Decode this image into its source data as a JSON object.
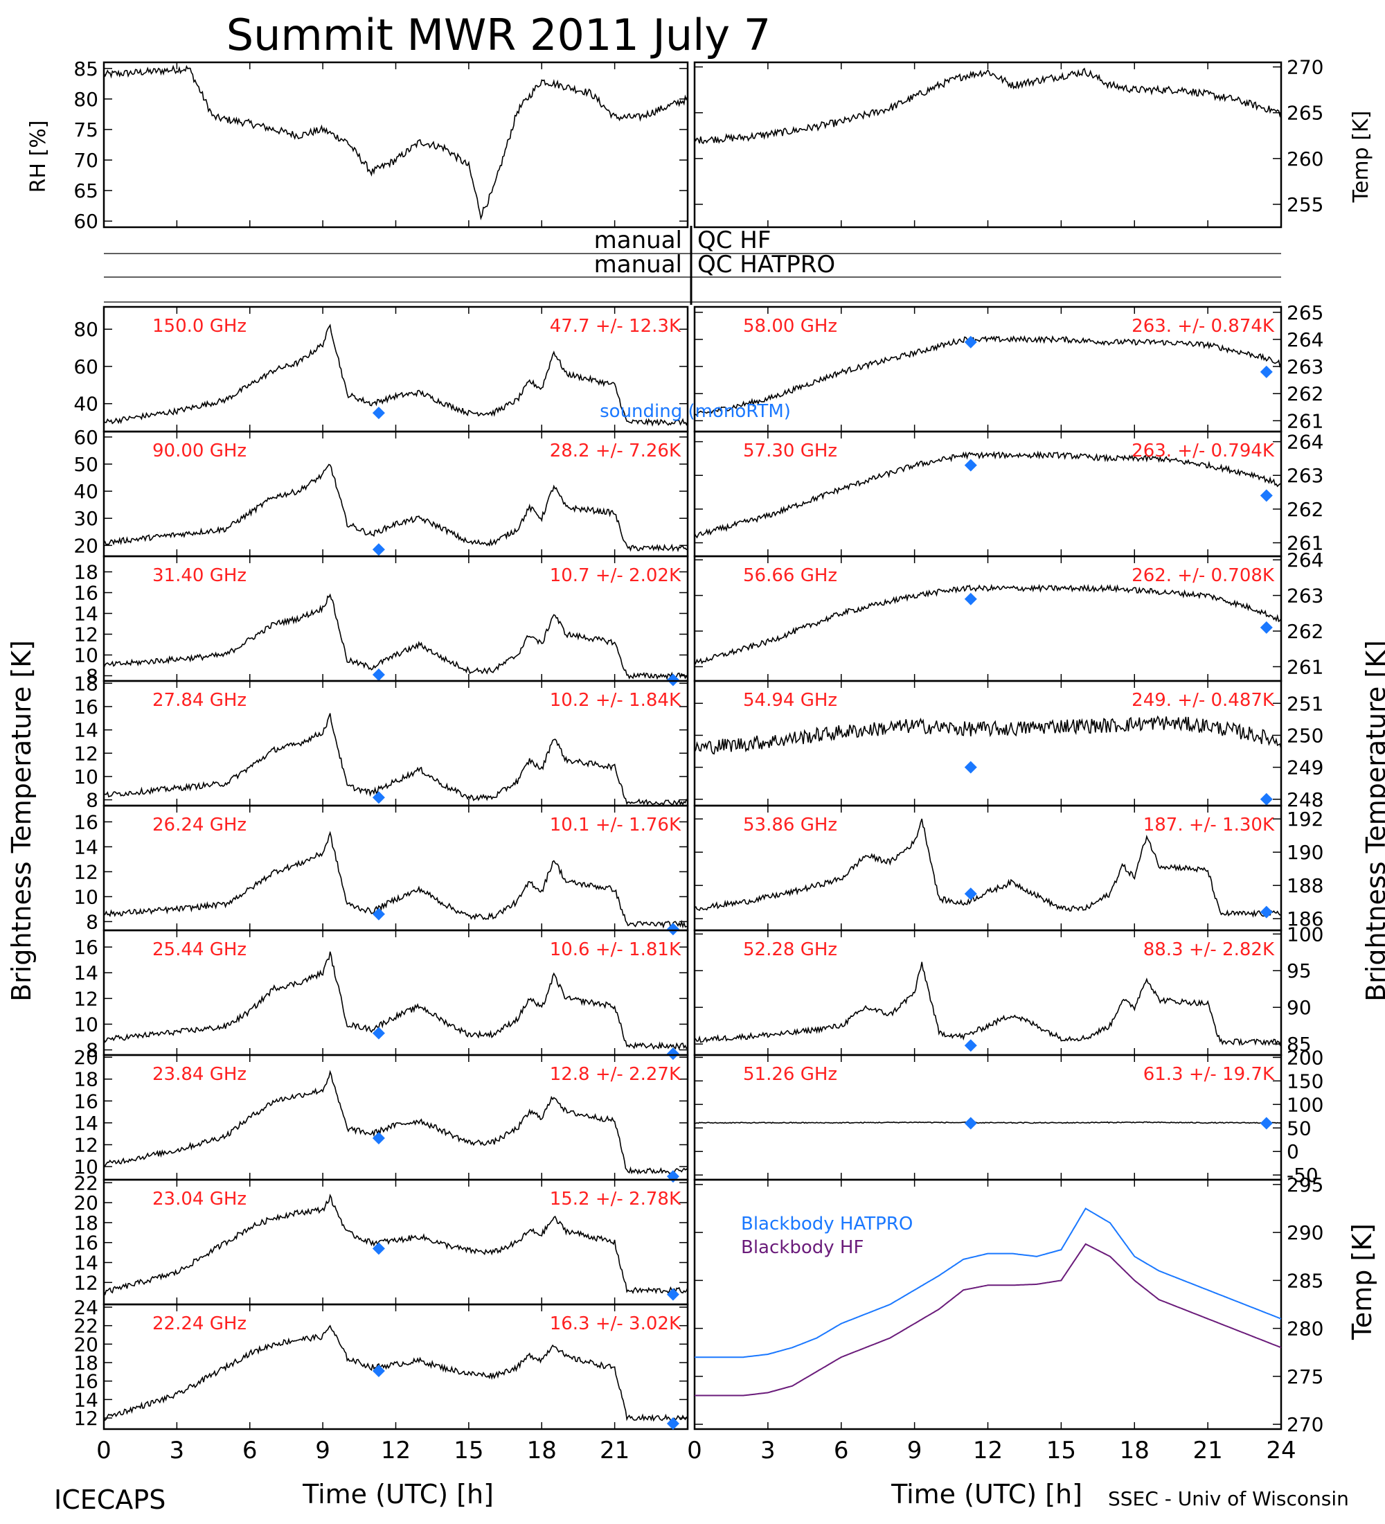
{
  "figure": {
    "title": "Summit MWR 2011 July 7",
    "left_ylabel": "Brightness Temperature [K]",
    "right_ylabel": "Brightness Temperature [K]",
    "xlabel": "Time (UTC) [h]",
    "footer_left": "ICECAPS",
    "footer_right": "SSEC - Univ of Wisconsin",
    "qc_hf_left": "manual",
    "qc_hf_right": "QC HF",
    "qc_hatpro_left": "manual",
    "qc_hatpro_right": "QC HATPRO",
    "sounding_note": "sounding (monoRTM)",
    "blackbody_hatpro": "Blackbody HATPRO",
    "blackbody_hf": "Blackbody HF",
    "colors": {
      "trace": "#000000",
      "label": "#ff2020",
      "marker": "#1a78ff",
      "bb_hatpro": "#1a78ff",
      "bb_hf": "#6a1b7a"
    }
  },
  "chart_data": [
    {
      "id": "rh",
      "type": "line",
      "side": "left",
      "ylabel": "RH [%]",
      "ylim": [
        59,
        86
      ],
      "yticks": [
        60,
        65,
        70,
        75,
        80,
        85
      ],
      "xlim": [
        0,
        24
      ],
      "x": [
        0,
        2,
        3.5,
        4.5,
        6,
        8,
        9,
        10,
        11,
        12,
        13,
        14,
        15,
        15.5,
        16,
        17,
        18,
        20,
        21,
        22,
        24
      ],
      "values": [
        84,
        84.5,
        85,
        77,
        76,
        74,
        75,
        73,
        68,
        70,
        73,
        72,
        69,
        61,
        65,
        78,
        83,
        81,
        77,
        77,
        80
      ]
    },
    {
      "id": "temp",
      "type": "line",
      "side": "right",
      "ylabel": "Temp [K]",
      "ylim": [
        252.5,
        270.5
      ],
      "yticks": [
        255,
        260,
        265,
        270
      ],
      "xlim": [
        0,
        24
      ],
      "x": [
        0,
        2,
        4,
        6,
        8,
        10,
        11,
        12,
        13,
        14,
        15,
        16,
        17,
        18,
        20,
        22,
        24
      ],
      "values": [
        262,
        262.3,
        263,
        264,
        265.5,
        268,
        269,
        269.5,
        268,
        268.5,
        269,
        269.5,
        268,
        267.5,
        267.5,
        266.5,
        265
      ]
    },
    {
      "id": "150",
      "type": "line",
      "side": "left",
      "ylim": [
        25,
        92
      ],
      "yticks": [
        40,
        60,
        80
      ],
      "freq": "150.0 GHz",
      "stat": "47.7 +/- 12.3K",
      "sounding": [
        [
          11.3,
          35
        ]
      ],
      "x": [
        0,
        3,
        5,
        6,
        7,
        8,
        9,
        9.3,
        10,
        11,
        12,
        13,
        14,
        15,
        16,
        17,
        17.5,
        18,
        18.5,
        19,
        21,
        21.5,
        24
      ],
      "values": [
        30,
        36,
        42,
        50,
        58,
        62,
        72,
        82,
        45,
        40,
        44,
        46,
        40,
        35,
        35,
        42,
        52,
        48,
        68,
        56,
        50,
        30,
        30
      ]
    },
    {
      "id": "58",
      "type": "line",
      "side": "right",
      "ylim": [
        260.6,
        265.2
      ],
      "yticks": [
        261,
        262,
        263,
        264,
        265
      ],
      "freq": "58.00 GHz",
      "stat": "263. +/- 0.874K",
      "sounding": [
        [
          11.3,
          263.9
        ],
        [
          23.4,
          262.8
        ]
      ],
      "x": [
        0,
        3,
        6,
        9,
        11,
        13,
        15,
        17,
        19,
        21,
        23,
        24
      ],
      "values": [
        261.2,
        261.8,
        262.8,
        263.5,
        264,
        264,
        264,
        263.9,
        263.9,
        263.8,
        263.4,
        263.1
      ]
    },
    {
      "id": "90",
      "type": "line",
      "side": "left",
      "ylim": [
        16,
        62
      ],
      "yticks": [
        20,
        30,
        40,
        50,
        60
      ],
      "freq": "90.00 GHz",
      "stat": "28.2 +/- 7.26K",
      "sounding": [
        [
          11.3,
          18.5
        ]
      ],
      "x": [
        0,
        3,
        5,
        6,
        7,
        8,
        9,
        9.3,
        10,
        11,
        12,
        13,
        14,
        15,
        16,
        17,
        17.5,
        18,
        18.5,
        19,
        21,
        21.5,
        24
      ],
      "values": [
        21,
        24,
        26,
        32,
        38,
        40,
        46,
        50,
        28,
        24,
        28,
        30,
        26,
        21,
        21,
        26,
        34,
        30,
        42,
        34,
        32,
        19,
        19
      ]
    },
    {
      "id": "57.3",
      "type": "line",
      "side": "right",
      "ylim": [
        260.6,
        264.3
      ],
      "yticks": [
        261,
        262,
        263,
        264
      ],
      "freq": "57.30 GHz",
      "stat": "263. +/- 0.794K",
      "sounding": [
        [
          11.3,
          263.3
        ],
        [
          23.4,
          262.4
        ]
      ],
      "x": [
        0,
        3,
        6,
        9,
        11,
        13,
        15,
        17,
        19,
        21,
        23,
        24
      ],
      "values": [
        261.2,
        261.8,
        262.6,
        263.3,
        263.6,
        263.6,
        263.6,
        263.5,
        263.5,
        263.3,
        263,
        262.7
      ]
    },
    {
      "id": "31.4",
      "type": "line",
      "side": "left",
      "ylim": [
        7.5,
        19.5
      ],
      "yticks": [
        8,
        10,
        12,
        14,
        16,
        18
      ],
      "freq": "31.40 GHz",
      "stat": "10.7 +/- 2.02K",
      "sounding": [
        [
          11.3,
          8.1
        ],
        [
          23.4,
          7.6
        ]
      ],
      "x": [
        0,
        3,
        5,
        6,
        7,
        8,
        9,
        9.3,
        10,
        11,
        12,
        13,
        14,
        15,
        16,
        17,
        17.5,
        18,
        18.5,
        19,
        21,
        21.5,
        24
      ],
      "values": [
        9,
        9.6,
        10,
        11.5,
        13,
        13.5,
        14.5,
        16,
        9.5,
        8.8,
        10,
        11,
        9.6,
        8.5,
        8.5,
        10,
        12,
        11,
        14,
        12,
        11.2,
        8,
        8
      ]
    },
    {
      "id": "56.66",
      "type": "line",
      "side": "right",
      "ylim": [
        260.6,
        264.1
      ],
      "yticks": [
        261,
        262,
        263,
        264
      ],
      "freq": "56.66 GHz",
      "stat": "262. +/- 0.708K",
      "sounding": [
        [
          11.3,
          262.9
        ],
        [
          23.4,
          262.1
        ]
      ],
      "x": [
        0,
        3,
        6,
        9,
        11,
        13,
        15,
        17,
        19,
        21,
        23,
        24
      ],
      "values": [
        261.1,
        261.7,
        262.5,
        263,
        263.2,
        263.2,
        263.2,
        263.2,
        263.1,
        263,
        262.6,
        262.3
      ]
    },
    {
      "id": "27.84",
      "type": "line",
      "side": "left",
      "ylim": [
        7.5,
        18.2
      ],
      "yticks": [
        8,
        10,
        12,
        14,
        16,
        18
      ],
      "freq": "27.84 GHz",
      "stat": "10.2 +/- 1.84K",
      "sounding": [
        [
          11.3,
          8.2
        ]
      ],
      "x": [
        0,
        3,
        5,
        6,
        7,
        8,
        9,
        9.3,
        10,
        11,
        12,
        13,
        14,
        15,
        16,
        17,
        17.5,
        18,
        18.5,
        19,
        21,
        21.5,
        24
      ],
      "values": [
        8.4,
        9,
        9.4,
        10.8,
        12.3,
        12.8,
        13.8,
        15.2,
        9.2,
        8.6,
        9.6,
        10.6,
        9.2,
        8.2,
        8.2,
        9.6,
        11.4,
        10.6,
        13.4,
        11.4,
        10.8,
        7.8,
        7.8
      ]
    },
    {
      "id": "54.94",
      "type": "line",
      "side": "right",
      "ylim": [
        247.8,
        251.7
      ],
      "yticks": [
        248,
        249,
        250,
        251
      ],
      "freq": "54.94 GHz",
      "stat": "249. +/- 0.487K",
      "sounding": [
        [
          11.3,
          249
        ],
        [
          23.4,
          248
        ]
      ],
      "x": [
        0,
        3,
        6,
        9,
        11,
        13,
        15,
        17,
        19,
        21,
        23,
        24
      ],
      "values": [
        249.6,
        249.8,
        250.1,
        250.3,
        250.2,
        250.2,
        250.3,
        250.3,
        250.4,
        250.3,
        250,
        249.8
      ]
    },
    {
      "id": "26.24",
      "type": "line",
      "side": "left",
      "ylim": [
        7.3,
        17.3
      ],
      "yticks": [
        8,
        10,
        12,
        14,
        16
      ],
      "freq": "26.24 GHz",
      "stat": "10.1 +/- 1.76K",
      "sounding": [
        [
          11.3,
          8.6
        ],
        [
          23.4,
          7.4
        ]
      ],
      "x": [
        0,
        3,
        5,
        6,
        7,
        8,
        9,
        9.3,
        10,
        11,
        12,
        13,
        14,
        15,
        16,
        17,
        17.5,
        18,
        18.5,
        19,
        21,
        21.5,
        24
      ],
      "values": [
        8.6,
        9,
        9.4,
        10.6,
        12,
        12.6,
        13.5,
        15,
        9.4,
        8.8,
        9.8,
        10.6,
        9.4,
        8.4,
        8.4,
        9.6,
        11.2,
        10.4,
        13,
        11.2,
        10.6,
        7.8,
        7.8
      ]
    },
    {
      "id": "53.86",
      "type": "line",
      "side": "right",
      "ylim": [
        185.3,
        192.8
      ],
      "yticks": [
        186,
        188,
        190,
        192
      ],
      "freq": "53.86 GHz",
      "stat": "187. +/- 1.30K",
      "sounding": [
        [
          11.3,
          187.5
        ],
        [
          23.4,
          186.4
        ]
      ],
      "x": [
        0,
        2,
        4,
        6,
        7,
        8,
        9,
        9.3,
        10,
        11,
        12,
        13,
        14,
        15,
        16,
        17,
        17.5,
        18,
        18.5,
        19,
        21,
        21.5,
        24
      ],
      "values": [
        186.6,
        187,
        187.6,
        188.4,
        189.8,
        189.4,
        190.6,
        192,
        187.2,
        186.9,
        187.6,
        188.2,
        187.4,
        186.6,
        186.6,
        187.5,
        189.2,
        188.5,
        191,
        189.2,
        188.9,
        186.3,
        186.3
      ]
    },
    {
      "id": "25.44",
      "type": "line",
      "side": "left",
      "ylim": [
        7.6,
        17.3
      ],
      "yticks": [
        8,
        10,
        12,
        14,
        16
      ],
      "freq": "25.44 GHz",
      "stat": "10.6 +/- 1.81K",
      "sounding": [
        [
          11.3,
          9.3
        ],
        [
          23.4,
          7.7
        ]
      ],
      "x": [
        0,
        3,
        5,
        6,
        7,
        8,
        9,
        9.3,
        10,
        11,
        12,
        13,
        14,
        15,
        16,
        17,
        17.5,
        18,
        18.5,
        19,
        21,
        21.5,
        24
      ],
      "values": [
        8.8,
        9.4,
        9.8,
        11,
        12.8,
        13.2,
        14,
        15.5,
        10,
        9.6,
        10.6,
        11.4,
        10.2,
        9.2,
        9.2,
        10.4,
        12,
        11.2,
        13.8,
        12,
        11.4,
        8.3,
        8.3
      ]
    },
    {
      "id": "52.28",
      "type": "line",
      "side": "right",
      "ylim": [
        83.5,
        100.5
      ],
      "yticks": [
        85,
        90,
        95,
        100
      ],
      "freq": "52.28 GHz",
      "stat": "88.3 +/- 2.82K",
      "sounding": [
        [
          11.3,
          84.8
        ]
      ],
      "x": [
        0,
        2,
        4,
        6,
        7,
        8,
        9,
        9.3,
        10,
        11,
        12,
        13,
        14,
        15,
        16,
        17,
        17.5,
        18,
        18.5,
        19,
        21,
        21.5,
        24
      ],
      "values": [
        85.5,
        86,
        86.5,
        87.5,
        90,
        89,
        92,
        96,
        86.5,
        86,
        87.5,
        89,
        87.5,
        85.8,
        85.8,
        87.5,
        91,
        90,
        94,
        91,
        90.5,
        85.3,
        85.3
      ]
    },
    {
      "id": "23.84",
      "type": "line",
      "side": "left",
      "ylim": [
        8.8,
        20.2
      ],
      "yticks": [
        10,
        12,
        14,
        16,
        18,
        20
      ],
      "freq": "23.84 GHz",
      "stat": "12.8 +/- 2.27K",
      "sounding": [
        [
          11.3,
          12.6
        ],
        [
          23.4,
          9.1
        ]
      ],
      "x": [
        0,
        3,
        5,
        6,
        7,
        8,
        9,
        9.3,
        10,
        11,
        12,
        13,
        14,
        15,
        16,
        17,
        17.5,
        18,
        18.5,
        19,
        21,
        21.5,
        24
      ],
      "values": [
        10.2,
        11.5,
        12.8,
        14.5,
        16,
        16.5,
        17,
        18.5,
        13.5,
        13,
        13.8,
        14.2,
        13.2,
        12.2,
        12.2,
        13.5,
        15,
        14.5,
        16.5,
        15,
        14.2,
        9.6,
        9.6
      ]
    },
    {
      "id": "51.26",
      "type": "line",
      "side": "right",
      "ylim": [
        -60,
        205
      ],
      "yticks": [
        -50,
        0,
        50,
        100,
        150,
        200
      ],
      "freq": "51.26 GHz",
      "stat": "61.3 +/- 19.7K",
      "sounding": [
        [
          11.3,
          60
        ],
        [
          23.4,
          60
        ]
      ],
      "x": [
        0,
        6,
        9,
        12,
        15,
        18,
        21,
        24
      ],
      "values": [
        61,
        61,
        62,
        61,
        61,
        62,
        61,
        61
      ]
    },
    {
      "id": "23.04",
      "type": "line",
      "side": "left",
      "ylim": [
        9.8,
        22.3
      ],
      "yticks": [
        12,
        14,
        16,
        18,
        20,
        22
      ],
      "freq": "23.04 GHz",
      "stat": "15.2 +/- 2.78K",
      "sounding": [
        [
          11.3,
          15.4
        ],
        [
          23.4,
          10.8
        ]
      ],
      "x": [
        0,
        3,
        5,
        6,
        7,
        8,
        9,
        9.3,
        10,
        11,
        12,
        13,
        14,
        15,
        16,
        17,
        17.5,
        18,
        18.5,
        19,
        21,
        21.5,
        24
      ],
      "values": [
        11,
        13,
        16,
        17.5,
        18.5,
        19,
        19.3,
        20.5,
        17,
        16,
        16.2,
        16.6,
        15.8,
        15.2,
        15,
        16,
        17.2,
        16.8,
        18.5,
        17.2,
        16,
        11.2,
        11.2
      ]
    },
    {
      "id": "22.24",
      "type": "line",
      "side": "left",
      "ylim": [
        10.8,
        24.3
      ],
      "yticks": [
        12,
        14,
        16,
        18,
        20,
        22,
        24
      ],
      "freq": "22.24 GHz",
      "stat": "16.3 +/- 3.02K",
      "sounding": [
        [
          11.3,
          17.1
        ],
        [
          23.4,
          11.4
        ]
      ],
      "x": [
        0,
        3,
        5,
        6,
        7,
        8,
        9,
        9.3,
        10,
        11,
        12,
        13,
        14,
        15,
        16,
        17,
        17.5,
        18,
        18.5,
        19,
        21,
        21.5,
        24
      ],
      "values": [
        12,
        14.5,
        17.5,
        19,
        20,
        20.5,
        20.8,
        22,
        18.5,
        17.5,
        17.8,
        18.2,
        17.4,
        16.8,
        16.6,
        17.5,
        18.8,
        18.3,
        20,
        18.6,
        17.4,
        12,
        12
      ]
    },
    {
      "id": "bb",
      "type": "line",
      "side": "right",
      "ylabel": "Temp [K]",
      "ylim": [
        269.5,
        295.5
      ],
      "yticks": [
        270,
        275,
        280,
        285,
        290,
        295
      ],
      "series": [
        {
          "name": "Blackbody HATPRO",
          "color": "#1a78ff",
          "x": [
            0,
            2,
            3,
            4,
            5,
            6,
            7,
            8,
            9,
            10,
            11,
            12,
            13,
            14,
            15,
            16,
            17,
            18,
            19,
            20,
            21,
            22,
            23,
            24
          ],
          "values": [
            277,
            277,
            277.3,
            278,
            279,
            280.5,
            281.5,
            282.5,
            284,
            285.5,
            287.2,
            287.8,
            287.8,
            287.5,
            288.2,
            292.5,
            291,
            287.5,
            286,
            285,
            284,
            283,
            282,
            281
          ]
        },
        {
          "name": "Blackbody HF",
          "color": "#6a1b7a",
          "x": [
            0,
            2,
            3,
            4,
            5,
            6,
            7,
            8,
            9,
            10,
            11,
            12,
            13,
            14,
            15,
            16,
            17,
            18,
            19,
            20,
            21,
            22,
            23,
            24
          ],
          "values": [
            273,
            273,
            273.3,
            274,
            275.5,
            277,
            278,
            279,
            280.5,
            282,
            284,
            284.5,
            284.5,
            284.6,
            285,
            288.8,
            287.5,
            285,
            283,
            282,
            281,
            280,
            279,
            278
          ]
        }
      ]
    }
  ]
}
